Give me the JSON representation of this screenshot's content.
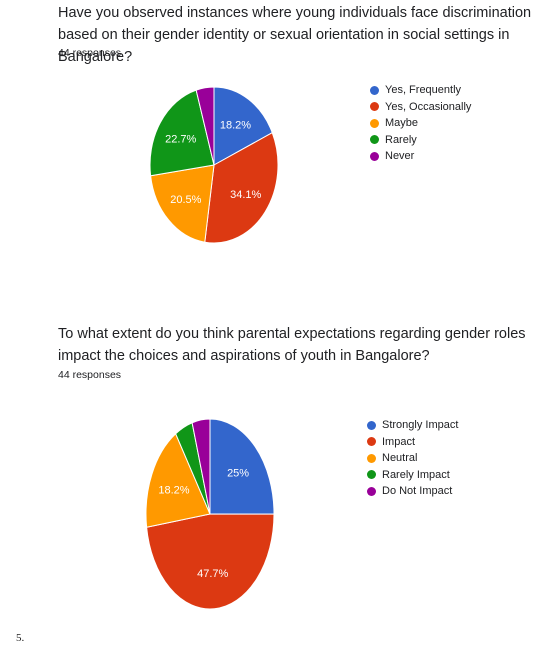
{
  "chart_data": [
    {
      "type": "pie",
      "title": "Have you observed instances where young individuals face discrimination based on their gender identity or sexual orientation in social settings in Bangalore?",
      "subtitle": "44 responses",
      "categories": [
        "Yes, Frequently",
        "Yes, Occasionally",
        "Maybe",
        "Rarely",
        "Never"
      ],
      "values": [
        18.2,
        34.1,
        20.5,
        22.7,
        4.5
      ],
      "data_labels": [
        "18.2%",
        "34.1%",
        "20.5%",
        "22.7%",
        ""
      ],
      "colors": [
        "#3366cc",
        "#dc3912",
        "#ff9900",
        "#109618",
        "#990099"
      ],
      "legend_position": "right"
    },
    {
      "type": "pie",
      "title": "To what extent do you think parental expectations regarding gender roles impact the choices and aspirations of youth in Bangalore?",
      "subtitle": "44 responses",
      "categories": [
        "Strongly Impact",
        "Impact",
        "Neutral",
        "Rarely Impact",
        "Do Not Impact"
      ],
      "values": [
        25,
        47.7,
        18.2,
        4.5,
        4.5
      ],
      "data_labels": [
        "25%",
        "47.7%",
        "18.2%",
        "",
        ""
      ],
      "colors": [
        "#3366cc",
        "#dc3912",
        "#ff9900",
        "#109618",
        "#990099"
      ],
      "legend_position": "right"
    }
  ],
  "footnote": "5."
}
